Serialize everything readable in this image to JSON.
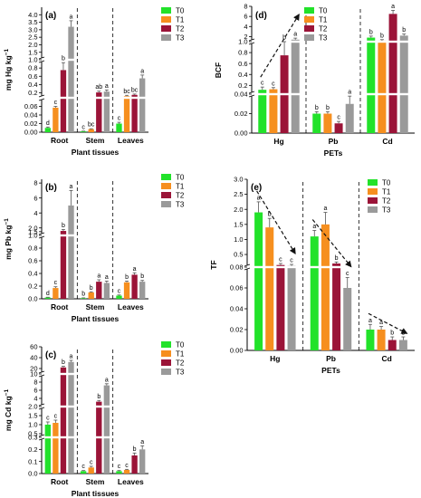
{
  "figure": {
    "series_colors": {
      "T0": "#22e22a",
      "T1": "#f68f1f",
      "T2": "#9b1438",
      "T3": "#9a9a9a"
    },
    "error_color": "#555555",
    "arrow_color": "#111111"
  },
  "chart_data": [
    {
      "id": "a",
      "panel_label": "(a)",
      "type": "bar",
      "ylabel": "mg Hg kg",
      "ylabel_sup": "−1",
      "xlabel": "Plant tissues",
      "categories": [
        "Root",
        "Stem",
        "Leaves"
      ],
      "legend": [
        "T0",
        "T1",
        "T2",
        "T3"
      ],
      "legend_position": "top-right",
      "axis_break": true,
      "segments": [
        {
          "ylim": [
            0,
            0.08
          ],
          "ticks": [
            "0.00",
            "0.02",
            "0.04",
            "0.06"
          ]
        },
        {
          "ylim": [
            0.08,
            1.0
          ],
          "ticks": [
            "0.2",
            "0.4",
            "0.6",
            "0.8",
            "1.0"
          ]
        },
        {
          "ylim": [
            1.0,
            4.5
          ],
          "ticks": [
            "1.5",
            "2.0",
            "2.5",
            "3.0",
            "3.5",
            "4.0"
          ]
        }
      ],
      "series": [
        {
          "name": "T0",
          "values": [
            0.01,
            0.002,
            0.02
          ],
          "errors": [
            0.002,
            0.0005,
            0.003
          ],
          "letters": [
            "d",
            "c",
            "c"
          ]
        },
        {
          "name": "T1",
          "values": [
            0.057,
            0.007,
            0.12
          ],
          "errors": [
            0.003,
            0.001,
            0.02
          ],
          "letters": [
            "c",
            "bc",
            "bc"
          ]
        },
        {
          "name": "T2",
          "values": [
            0.75,
            0.21,
            0.15
          ],
          "errors": [
            0.18,
            0.03,
            0.02
          ],
          "letters": [
            "b",
            "ab",
            "bc"
          ]
        },
        {
          "name": "T3",
          "values": [
            3.2,
            0.23,
            0.55
          ],
          "errors": [
            0.4,
            0.04,
            0.08
          ],
          "letters": [
            "a",
            "a",
            "a"
          ]
        }
      ]
    },
    {
      "id": "b",
      "panel_label": "(b)",
      "type": "bar",
      "ylabel": "mg Pb kg",
      "ylabel_sup": "−1",
      "xlabel": "Plant tissues",
      "categories": [
        "Root",
        "Stem",
        "Leaves"
      ],
      "legend": [
        "T0",
        "T1",
        "T2",
        "T3"
      ],
      "legend_position": "top-right",
      "axis_break": true,
      "segments": [
        {
          "ylim": [
            0,
            1.0
          ],
          "ticks": [
            "0.0",
            "0.2",
            "0.4",
            "0.6",
            "0.8",
            "1.0"
          ]
        },
        {
          "ylim": [
            1.0,
            8.5
          ],
          "ticks": [
            "1.5",
            "2.0",
            "4",
            "6",
            "8"
          ]
        }
      ],
      "series": [
        {
          "name": "T0",
          "values": [
            0.02,
            0.01,
            0.05
          ],
          "errors": [
            0.005,
            0.005,
            0.01
          ],
          "letters": [
            "d",
            "b",
            "c"
          ]
        },
        {
          "name": "T1",
          "values": [
            0.17,
            0.1,
            0.26
          ],
          "errors": [
            0.02,
            0.01,
            0.02
          ],
          "letters": [
            "c",
            "b",
            "b"
          ]
        },
        {
          "name": "T2",
          "values": [
            1.6,
            0.27,
            0.38
          ],
          "errors": [
            0.2,
            0.03,
            0.03
          ],
          "letters": [
            "b",
            "a",
            "a"
          ]
        },
        {
          "name": "T3",
          "values": [
            5.0,
            0.25,
            0.27
          ],
          "errors": [
            2.0,
            0.03,
            0.02
          ],
          "letters": [
            "a",
            "a",
            "b"
          ]
        }
      ]
    },
    {
      "id": "c",
      "panel_label": "(c)",
      "type": "bar",
      "ylabel": "mg Cd kg",
      "ylabel_sup": "−1",
      "xlabel": "Plant tissues",
      "categories": [
        "Root",
        "Stem",
        "Leaves"
      ],
      "legend": [
        "T0",
        "T1",
        "T2",
        "T3"
      ],
      "legend_position": "top-right",
      "axis_break": true,
      "segments": [
        {
          "ylim": [
            0,
            0.3
          ],
          "ticks": [
            "0.0",
            "0.1",
            "0.2",
            "0.3"
          ]
        },
        {
          "ylim": [
            0.3,
            2.0
          ],
          "ticks": [
            "0.5",
            "1.0",
            "1.5",
            "2.0"
          ]
        },
        {
          "ylim": [
            2.0,
            10.0
          ],
          "ticks": [
            "4",
            "6",
            "8",
            "10"
          ]
        },
        {
          "ylim": [
            10.0,
            60.0
          ],
          "ticks": [
            "20",
            "40",
            "60"
          ]
        }
      ],
      "series": [
        {
          "name": "T0",
          "values": [
            1.0,
            0.02,
            0.02
          ],
          "errors": [
            0.15,
            0.005,
            0.005
          ],
          "letters": [
            "c",
            "c",
            "c"
          ]
        },
        {
          "name": "T1",
          "values": [
            1.1,
            0.05,
            0.03
          ],
          "errors": [
            0.15,
            0.01,
            0.005
          ],
          "letters": [
            "c",
            "c",
            "c"
          ]
        },
        {
          "name": "T2",
          "values": [
            22.0,
            3.2,
            0.15
          ],
          "errors": [
            2.0,
            0.3,
            0.02
          ],
          "letters": [
            "b",
            "b",
            "b"
          ]
        },
        {
          "name": "T3",
          "values": [
            32.0,
            7.2,
            0.2
          ],
          "errors": [
            3.0,
            0.4,
            0.03
          ],
          "letters": [
            "a",
            "a",
            "a"
          ]
        }
      ]
    },
    {
      "id": "d",
      "panel_label": "(d)",
      "type": "bar",
      "ylabel": "BCF",
      "ylabel_sup": "",
      "xlabel": "PETs",
      "categories": [
        "Hg",
        "Pb",
        "Cd"
      ],
      "legend": [
        "T0",
        "T1",
        "T2",
        "T3"
      ],
      "legend_position": "top-center",
      "axis_break": true,
      "segments": [
        {
          "ylim": [
            0,
            0.04
          ],
          "ticks": [
            "0.00",
            "0.02",
            "0.04"
          ]
        },
        {
          "ylim": [
            0.04,
            1.0
          ],
          "ticks": [
            "0.2",
            "0.4",
            "0.6",
            "0.8",
            "1.0"
          ]
        },
        {
          "ylim": [
            1.0,
            8.0
          ],
          "ticks": [
            "2",
            "4",
            "6",
            "8"
          ]
        }
      ],
      "arrows": [
        {
          "category": "Hg",
          "direction": "increasing"
        }
      ],
      "series": [
        {
          "name": "T0",
          "values": [
            0.12,
            0.02,
            1.8
          ],
          "errors": [
            0.05,
            0.002,
            0.3
          ],
          "letters": [
            "c",
            "b",
            "b"
          ]
        },
        {
          "name": "T1",
          "values": [
            0.13,
            0.02,
            1.2
          ],
          "errors": [
            0.03,
            0.002,
            0.2
          ],
          "letters": [
            "c",
            "b",
            "b"
          ]
        },
        {
          "name": "T2",
          "values": [
            0.75,
            0.01,
            6.5
          ],
          "errors": [
            0.25,
            0.002,
            0.7
          ],
          "letters": [
            "b",
            "c",
            "a"
          ]
        },
        {
          "name": "T3",
          "values": [
            1.4,
            0.03,
            2.2
          ],
          "errors": [
            0.3,
            0.008,
            0.3
          ],
          "letters": [
            "a",
            "a",
            "b"
          ]
        }
      ]
    },
    {
      "id": "e",
      "panel_label": "(e)",
      "type": "bar",
      "ylabel": "TF",
      "ylabel_sup": "",
      "xlabel": "PETs",
      "categories": [
        "Hg",
        "Pb",
        "Cd"
      ],
      "legend": [
        "T0",
        "T1",
        "T2",
        "T3"
      ],
      "legend_position": "top-right",
      "axis_break": true,
      "segments": [
        {
          "ylim": [
            0,
            0.08
          ],
          "ticks": [
            "0.00",
            "0.02",
            "0.04",
            "0.06",
            "0.08"
          ]
        },
        {
          "ylim": [
            0.08,
            3.0
          ],
          "ticks": [
            "0.5",
            "1.0",
            "1.5",
            "2.0",
            "2.5",
            "3.0"
          ]
        }
      ],
      "arrows": [
        {
          "category": "Hg",
          "direction": "decreasing"
        },
        {
          "category": "Pb",
          "direction": "decreasing"
        },
        {
          "category": "Cd",
          "direction": "decreasing"
        }
      ],
      "series": [
        {
          "name": "T0",
          "values": [
            1.9,
            1.1,
            0.02
          ],
          "errors": [
            0.35,
            0.2,
            0.005
          ],
          "letters": [
            "a",
            "a",
            "a"
          ]
        },
        {
          "name": "T1",
          "values": [
            1.4,
            1.5,
            0.02
          ],
          "errors": [
            0.3,
            0.4,
            0.003
          ],
          "letters": [
            "b",
            "a",
            "a"
          ]
        },
        {
          "name": "T2",
          "values": [
            0.15,
            0.2,
            0.01
          ],
          "errors": [
            0.05,
            0.05,
            0.003
          ],
          "letters": [
            "c",
            "b",
            "b"
          ]
        },
        {
          "name": "T3",
          "values": [
            0.12,
            0.06,
            0.01
          ],
          "errors": [
            0.05,
            0.01,
            0.003
          ],
          "letters": [
            "c",
            "c",
            "b"
          ]
        }
      ]
    }
  ]
}
